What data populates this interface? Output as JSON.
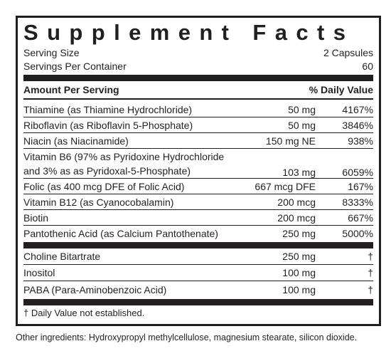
{
  "header": {
    "title": "Supplement Facts",
    "serving_size": {
      "label": "Serving Size",
      "value": "2 Capsules"
    },
    "servings_per_container": {
      "label": "Servings Per Container",
      "value": "60"
    }
  },
  "table": {
    "columns": {
      "amount": "Amount Per Serving",
      "daily_value": "% Daily Value"
    },
    "rows": [
      {
        "name": "Thiamine (as Thiamine Hydrochloride)",
        "amount": "50 mg",
        "daily_value": "4167%"
      },
      {
        "name": "Riboflavin (as Riboflavin 5-Phosphate)",
        "amount": "50 mg",
        "daily_value": "3846%"
      },
      {
        "name": "Niacin (as Niacinamide)",
        "amount": "150 mg NE",
        "daily_value": "938%"
      },
      {
        "name": "Vitamin B6 (97% as Pyridoxine Hydrochloride and 3% as as Pyridoxal-5-Phosphate)",
        "amount": "103 mg",
        "daily_value": "6059%"
      },
      {
        "name": "Folic (as 400 mcg DFE of Folic Acid)",
        "amount": "667 mcg DFE",
        "daily_value": "167%"
      },
      {
        "name": "Vitamin B12 (as Cyanocobalamin)",
        "amount": "200 mcg",
        "daily_value": "8333%"
      },
      {
        "name": "Biotin",
        "amount": "200 mcg",
        "daily_value": "667%"
      },
      {
        "name": "Pantothenic Acid (as Calcium Pantothenate)",
        "amount": "250 mg",
        "daily_value": "5000%"
      }
    ],
    "other_rows": [
      {
        "name": "Choline Bitartrate",
        "amount": "250 mg",
        "daily_value": "†"
      },
      {
        "name": "Inositol",
        "amount": "100 mg",
        "daily_value": "†"
      },
      {
        "name": "PABA (Para-Aminobenzoic Acid)",
        "amount": "100 mg",
        "daily_value": "†"
      }
    ],
    "footnote": "† Daily Value not established."
  },
  "other_ingredients": "Other ingredients: Hydroxypropyl methylcellulose, magnesium stearate, silicon dioxide."
}
